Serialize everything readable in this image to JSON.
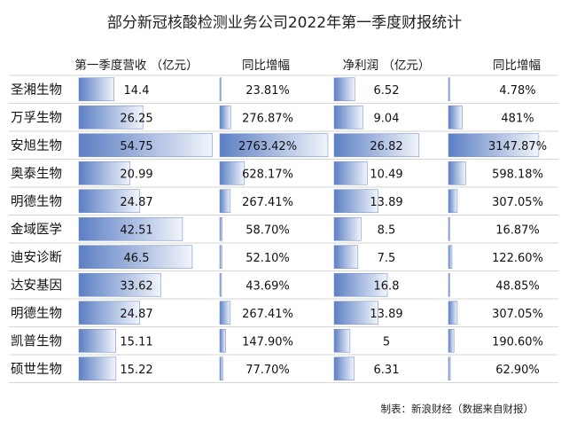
{
  "chart_data": {
    "type": "table",
    "title": "部分新冠核酸检测业务公司2022年第一季度财报统计",
    "columns": [
      "第一季度营收 （亿元）",
      "同比增幅",
      "净利润 （亿元）",
      "同比增幅"
    ],
    "rows": [
      {
        "company": "圣湘生物",
        "revenue": 14.4,
        "revenue_label": "14.4",
        "revenue_growth": 23.81,
        "revenue_growth_label": "23.81%",
        "net_profit": 6.52,
        "net_profit_label": "6.52",
        "profit_growth": 4.78,
        "profit_growth_label": "4.78%"
      },
      {
        "company": "万孚生物",
        "revenue": 26.25,
        "revenue_label": "26.25",
        "revenue_growth": 276.87,
        "revenue_growth_label": "276.87%",
        "net_profit": 9.04,
        "net_profit_label": "9.04",
        "profit_growth": 481,
        "profit_growth_label": "481%"
      },
      {
        "company": "安旭生物",
        "revenue": 54.75,
        "revenue_label": "54.75",
        "revenue_growth": 2763.42,
        "revenue_growth_label": "2763.42%",
        "net_profit": 26.82,
        "net_profit_label": "26.82",
        "profit_growth": 3147.87,
        "profit_growth_label": "3147.87%"
      },
      {
        "company": "奥泰生物",
        "revenue": 20.99,
        "revenue_label": "20.99",
        "revenue_growth": 628.17,
        "revenue_growth_label": "628.17%",
        "net_profit": 10.49,
        "net_profit_label": "10.49",
        "profit_growth": 598.18,
        "profit_growth_label": "598.18%"
      },
      {
        "company": "明德生物",
        "revenue": 24.87,
        "revenue_label": "24.87",
        "revenue_growth": 267.41,
        "revenue_growth_label": "267.41%",
        "net_profit": 13.89,
        "net_profit_label": "13.89",
        "profit_growth": 307.05,
        "profit_growth_label": "307.05%"
      },
      {
        "company": "金域医学",
        "revenue": 42.51,
        "revenue_label": "42.51",
        "revenue_growth": 58.7,
        "revenue_growth_label": "58.70%",
        "net_profit": 8.5,
        "net_profit_label": "8.5",
        "profit_growth": 16.87,
        "profit_growth_label": "16.87%"
      },
      {
        "company": "迪安诊断",
        "revenue": 46.5,
        "revenue_label": "46.5",
        "revenue_growth": 52.1,
        "revenue_growth_label": "52.10%",
        "net_profit": 7.5,
        "net_profit_label": "7.5",
        "profit_growth": 122.6,
        "profit_growth_label": "122.60%"
      },
      {
        "company": "达安基因",
        "revenue": 33.62,
        "revenue_label": "33.62",
        "revenue_growth": 43.69,
        "revenue_growth_label": "43.69%",
        "net_profit": 16.8,
        "net_profit_label": "16.8",
        "profit_growth": 48.85,
        "profit_growth_label": "48.85%"
      },
      {
        "company": "明德生物",
        "revenue": 24.87,
        "revenue_label": "24.87",
        "revenue_growth": 267.41,
        "revenue_growth_label": "267.41%",
        "net_profit": 13.89,
        "net_profit_label": "13.89",
        "profit_growth": 307.05,
        "profit_growth_label": "307.05%"
      },
      {
        "company": "凯普生物",
        "revenue": 15.11,
        "revenue_label": "15.11",
        "revenue_growth": 147.9,
        "revenue_growth_label": "147.90%",
        "net_profit": 5,
        "net_profit_label": "5",
        "profit_growth": 190.6,
        "profit_growth_label": "190.60%"
      },
      {
        "company": "硕世生物",
        "revenue": 15.22,
        "revenue_label": "15.22",
        "revenue_growth": 77.7,
        "revenue_growth_label": "77.70%",
        "net_profit": 6.31,
        "net_profit_label": "6.31",
        "profit_growth": 62.9,
        "profit_growth_label": "62.90%"
      }
    ],
    "bar_color_dark": "#5b7fc4",
    "bar_color_light": "#f2f5fb"
  },
  "footer": "制表：新浪财经（数据来自财报）"
}
